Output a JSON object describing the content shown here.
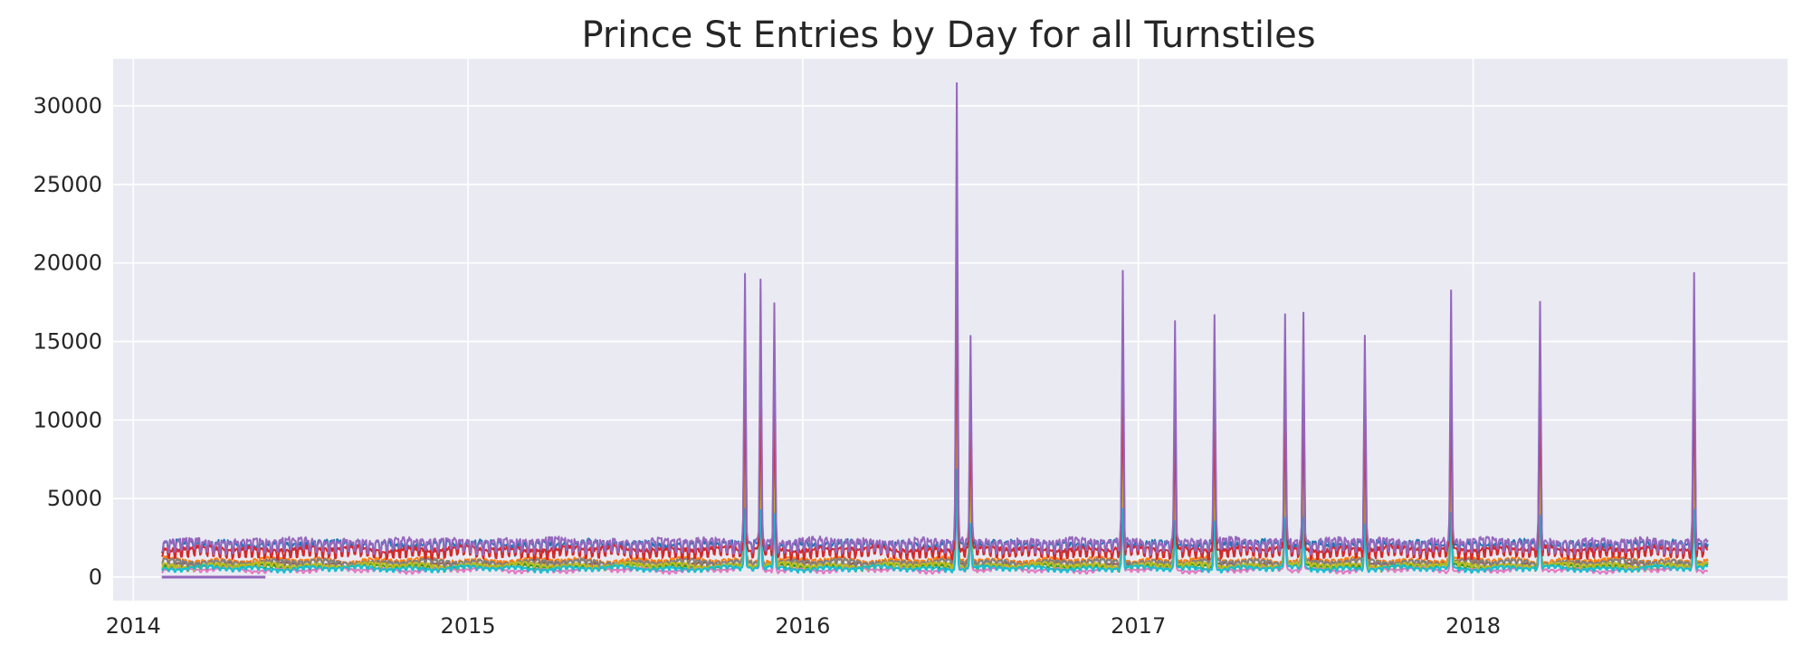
{
  "chart_data": {
    "type": "line",
    "title": "Prince St Entries by Day for all Turnstiles",
    "xlabel": "",
    "ylabel": "",
    "x_axis": {
      "type": "date",
      "min": "2013-12-10",
      "max": "2018-12-10",
      "ticks": [
        "2014",
        "2015",
        "2016",
        "2017",
        "2018"
      ]
    },
    "y_axis": {
      "min": -1500,
      "max": 33000,
      "ticks": [
        0,
        5000,
        10000,
        15000,
        20000,
        25000,
        30000
      ]
    },
    "grid": true,
    "legend": "none",
    "background": "#eaeaf2",
    "series_colors": [
      "#1f77b4",
      "#ff7f0e",
      "#2ca02c",
      "#d62728",
      "#9467bd",
      "#8c564b",
      "#e377c2",
      "#7f7f7f",
      "#bcbd22",
      "#17becf"
    ],
    "series_baselines": [
      2150,
      1100,
      700,
      1800,
      2300,
      850,
      500,
      1000,
      800,
      600
    ],
    "date_range": [
      "2014-02-01",
      "2018-09-14"
    ],
    "spikes": [
      {
        "date": "2015-10-30",
        "peak": 19500
      },
      {
        "date": "2015-11-16",
        "peak": 19000
      },
      {
        "date": "2015-12-01",
        "peak": 17600
      },
      {
        "date": "2016-06-17",
        "peak": 31500
      },
      {
        "date": "2016-07-02",
        "peak": 15900
      },
      {
        "date": "2016-12-15",
        "peak": 19500
      },
      {
        "date": "2017-02-10",
        "peak": 16300
      },
      {
        "date": "2017-03-25",
        "peak": 17400
      },
      {
        "date": "2017-06-10",
        "peak": 17400
      },
      {
        "date": "2017-06-30",
        "peak": 17100
      },
      {
        "date": "2017-09-05",
        "peak": 15400
      },
      {
        "date": "2017-12-08",
        "peak": 18200
      },
      {
        "date": "2018-03-15",
        "peak": 17500
      },
      {
        "date": "2018-08-30",
        "peak": 19300
      }
    ]
  }
}
